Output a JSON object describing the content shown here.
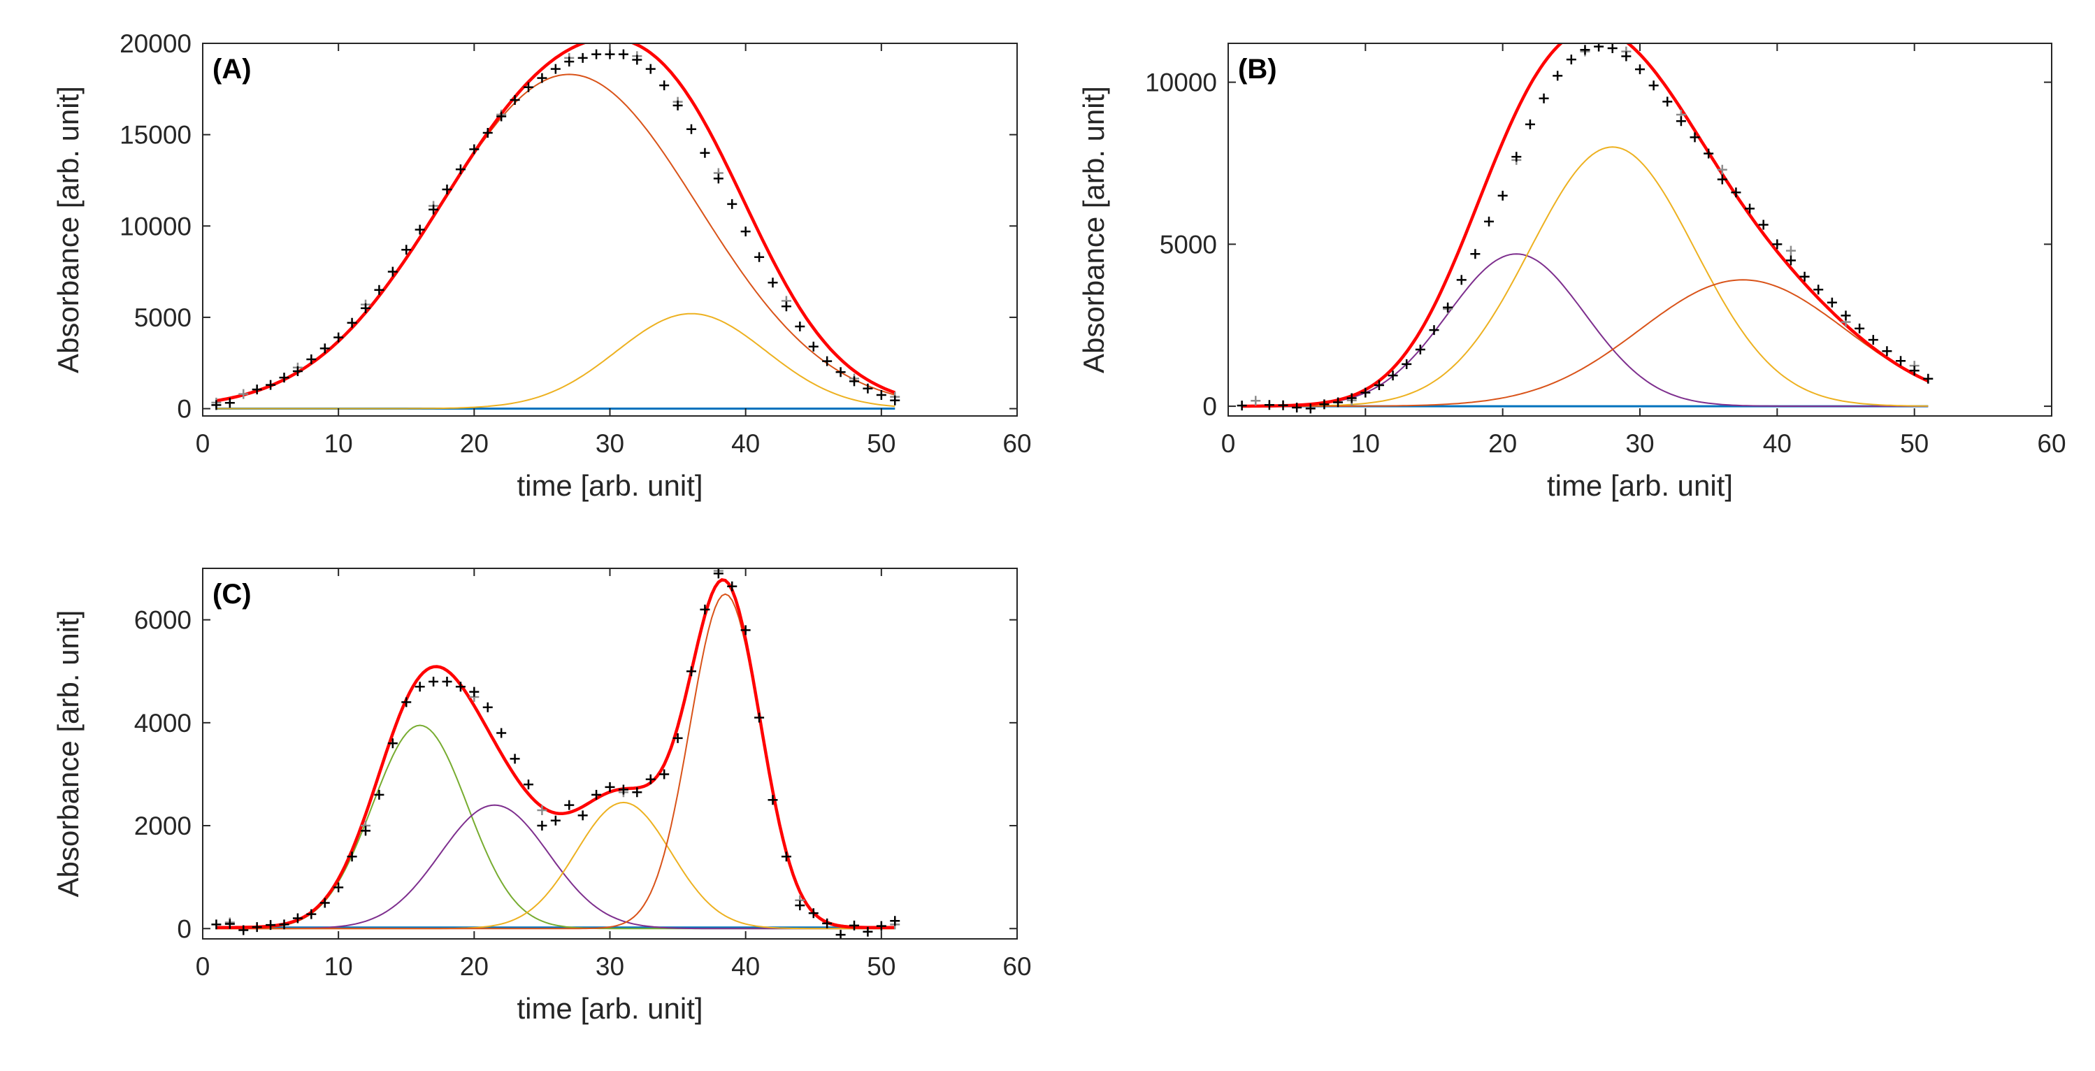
{
  "chart_data": [
    {
      "type": "line",
      "panel_label": "(A)",
      "xlabel": "time [arb. unit]",
      "ylabel": "Absorbance [arb. unit]",
      "xlim": [
        0,
        60
      ],
      "ylim": [
        -400,
        20000
      ],
      "xticks": [
        0,
        10,
        20,
        30,
        40,
        50,
        60
      ],
      "yticks": [
        0,
        5000,
        10000,
        15000,
        20000
      ],
      "grid": false,
      "t_range": [
        1,
        51
      ],
      "components": [
        {
          "name": "baseline",
          "color": "#0072BD",
          "kind": "constant",
          "level": 0
        },
        {
          "name": "component 1",
          "color": "#D95319",
          "kind": "gaussian",
          "amplitude": 18300,
          "center": 27,
          "width": 9.5
        },
        {
          "name": "component 2",
          "color": "#EDB120",
          "kind": "gaussian",
          "amplitude": 5200,
          "center": 36,
          "width": 5.5
        }
      ],
      "fit": {
        "name": "total fit",
        "color": "#FF0000"
      },
      "measured_black": [
        [
          1,
          200
        ],
        [
          2,
          320
        ],
        [
          4,
          1050
        ],
        [
          5,
          1300
        ],
        [
          6,
          1700
        ],
        [
          7,
          2050
        ],
        [
          8,
          2700
        ],
        [
          9,
          3300
        ],
        [
          10,
          3900
        ],
        [
          11,
          4700
        ],
        [
          12,
          5500
        ],
        [
          13,
          6500
        ],
        [
          14,
          7500
        ],
        [
          15,
          8700
        ],
        [
          16,
          9800
        ],
        [
          17,
          10900
        ],
        [
          18,
          12000
        ],
        [
          19,
          13100
        ],
        [
          20,
          14200
        ],
        [
          21,
          15100
        ],
        [
          22,
          16000
        ],
        [
          23,
          16900
        ],
        [
          24,
          17600
        ],
        [
          25,
          18100
        ],
        [
          26,
          18600
        ],
        [
          27,
          19000
        ],
        [
          28,
          19200
        ],
        [
          29,
          19400
        ],
        [
          30,
          19400
        ],
        [
          31,
          19400
        ],
        [
          32,
          19100
        ],
        [
          33,
          18600
        ],
        [
          34,
          17700
        ],
        [
          35,
          16600
        ],
        [
          36,
          15300
        ],
        [
          37,
          14000
        ],
        [
          38,
          12600
        ],
        [
          39,
          11200
        ],
        [
          40,
          9700
        ],
        [
          41,
          8300
        ],
        [
          42,
          6900
        ],
        [
          43,
          5600
        ],
        [
          44,
          4500
        ],
        [
          45,
          3400
        ],
        [
          46,
          2600
        ],
        [
          47,
          2000
        ],
        [
          48,
          1500
        ],
        [
          49,
          1100
        ],
        [
          50,
          750
        ],
        [
          51,
          450
        ]
      ],
      "measured_gray": [
        [
          1,
          330
        ],
        [
          3,
          800
        ],
        [
          7,
          2250
        ],
        [
          12,
          5700
        ],
        [
          17,
          11100
        ],
        [
          22,
          16100
        ],
        [
          27,
          19200
        ],
        [
          32,
          19300
        ],
        [
          35,
          16800
        ],
        [
          38,
          12900
        ],
        [
          43,
          5900
        ],
        [
          48,
          1650
        ],
        [
          51,
          650
        ]
      ]
    },
    {
      "type": "line",
      "panel_label": "(B)",
      "xlabel": "time [arb. unit]",
      "ylabel": "Absorbance [arb. unit]",
      "xlim": [
        0,
        60
      ],
      "ylim": [
        -300,
        11200
      ],
      "xticks": [
        0,
        10,
        20,
        30,
        40,
        50,
        60
      ],
      "yticks": [
        0,
        5000,
        10000
      ],
      "grid": false,
      "t_range": [
        1,
        51
      ],
      "components": [
        {
          "name": "baseline",
          "color": "#0072BD",
          "kind": "constant",
          "level": 0
        },
        {
          "name": "component 1",
          "color": "#7E2F8E",
          "kind": "gaussian",
          "amplitude": 4700,
          "center": 21,
          "width": 5.0
        },
        {
          "name": "component 2",
          "color": "#EDB120",
          "kind": "gaussian",
          "amplitude": 8000,
          "center": 28,
          "width": 6.0
        },
        {
          "name": "component 3",
          "color": "#D95319",
          "kind": "gaussian",
          "amplitude": 3900,
          "center": 37.5,
          "width": 7.5
        }
      ],
      "fit": {
        "name": "total fit",
        "color": "#FF0000"
      },
      "measured_black": [
        [
          1,
          20
        ],
        [
          3,
          40
        ],
        [
          4,
          30
        ],
        [
          5,
          -40
        ],
        [
          6,
          -70
        ],
        [
          7,
          60
        ],
        [
          8,
          120
        ],
        [
          9,
          250
        ],
        [
          10,
          420
        ],
        [
          11,
          650
        ],
        [
          12,
          950
        ],
        [
          13,
          1300
        ],
        [
          14,
          1750
        ],
        [
          15,
          2350
        ],
        [
          16,
          3050
        ],
        [
          17,
          3900
        ],
        [
          18,
          4700
        ],
        [
          19,
          5700
        ],
        [
          20,
          6500
        ],
        [
          21,
          7700
        ],
        [
          22,
          8700
        ],
        [
          23,
          9500
        ],
        [
          24,
          10200
        ],
        [
          25,
          10700
        ],
        [
          26,
          11000
        ],
        [
          27,
          11100
        ],
        [
          28,
          11050
        ],
        [
          29,
          10800
        ],
        [
          30,
          10400
        ],
        [
          31,
          9900
        ],
        [
          32,
          9400
        ],
        [
          33,
          8800
        ],
        [
          34,
          8300
        ],
        [
          35,
          7800
        ],
        [
          36,
          7000
        ],
        [
          37,
          6600
        ],
        [
          38,
          6100
        ],
        [
          39,
          5600
        ],
        [
          40,
          5000
        ],
        [
          41,
          4500
        ],
        [
          42,
          4000
        ],
        [
          43,
          3600
        ],
        [
          44,
          3200
        ],
        [
          45,
          2800
        ],
        [
          46,
          2400
        ],
        [
          47,
          2050
        ],
        [
          48,
          1700
        ],
        [
          49,
          1400
        ],
        [
          50,
          1100
        ],
        [
          51,
          850
        ]
      ],
      "measured_gray": [
        [
          2,
          170
        ],
        [
          9,
          180
        ],
        [
          16,
          3000
        ],
        [
          21,
          7600
        ],
        [
          26,
          10950
        ],
        [
          29,
          10950
        ],
        [
          33,
          9000
        ],
        [
          36,
          7300
        ],
        [
          41,
          4800
        ],
        [
          45,
          2600
        ],
        [
          50,
          1250
        ]
      ]
    },
    {
      "type": "line",
      "panel_label": "(C)",
      "xlabel": "time [arb. unit]",
      "ylabel": "Absorbance [arb. unit]",
      "xlim": [
        0,
        60
      ],
      "ylim": [
        -200,
        7000
      ],
      "xticks": [
        0,
        10,
        20,
        30,
        40,
        50,
        60
      ],
      "yticks": [
        0,
        2000,
        4000,
        6000
      ],
      "grid": false,
      "t_range": [
        1,
        51
      ],
      "components": [
        {
          "name": "baseline",
          "color": "#0072BD",
          "kind": "constant",
          "level": 20
        },
        {
          "name": "component 1",
          "color": "#77AC30",
          "kind": "gaussian",
          "amplitude": 3950,
          "center": 16,
          "width": 3.5
        },
        {
          "name": "component 2",
          "color": "#7E2F8E",
          "kind": "gaussian",
          "amplitude": 2400,
          "center": 21.5,
          "width": 4.0
        },
        {
          "name": "component 3",
          "color": "#EDB120",
          "kind": "gaussian",
          "amplitude": 2450,
          "center": 31,
          "width": 3.5
        },
        {
          "name": "component 4",
          "color": "#D95319",
          "kind": "gaussian",
          "amplitude": 6500,
          "center": 38.5,
          "width": 2.6
        }
      ],
      "fit": {
        "name": "total fit",
        "color": "#FF0000"
      },
      "measured_black": [
        [
          1,
          80
        ],
        [
          2,
          90
        ],
        [
          3,
          -30
        ],
        [
          4,
          30
        ],
        [
          5,
          70
        ],
        [
          6,
          80
        ],
        [
          7,
          200
        ],
        [
          8,
          280
        ],
        [
          9,
          500
        ],
        [
          10,
          800
        ],
        [
          11,
          1400
        ],
        [
          12,
          1900
        ],
        [
          13,
          2600
        ],
        [
          14,
          3600
        ],
        [
          15,
          4400
        ],
        [
          16,
          4700
        ],
        [
          17,
          4800
        ],
        [
          18,
          4800
        ],
        [
          19,
          4700
        ],
        [
          20,
          4600
        ],
        [
          21,
          4300
        ],
        [
          22,
          3800
        ],
        [
          23,
          3300
        ],
        [
          24,
          2800
        ],
        [
          25,
          2000
        ],
        [
          26,
          2100
        ],
        [
          27,
          2400
        ],
        [
          28,
          2200
        ],
        [
          29,
          2600
        ],
        [
          30,
          2750
        ],
        [
          31,
          2700
        ],
        [
          32,
          2650
        ],
        [
          33,
          2900
        ],
        [
          34,
          3000
        ],
        [
          35,
          3700
        ],
        [
          36,
          5000
        ],
        [
          37,
          6200
        ],
        [
          38,
          6900
        ],
        [
          39,
          6650
        ],
        [
          40,
          5800
        ],
        [
          41,
          4100
        ],
        [
          42,
          2500
        ],
        [
          43,
          1400
        ],
        [
          44,
          450
        ],
        [
          45,
          300
        ],
        [
          46,
          100
        ],
        [
          47,
          -120
        ],
        [
          48,
          60
        ],
        [
          49,
          -60
        ],
        [
          50,
          50
        ],
        [
          51,
          150
        ]
      ],
      "measured_gray": [
        [
          2,
          120
        ],
        [
          12,
          2000
        ],
        [
          20,
          4500
        ],
        [
          25,
          2300
        ],
        [
          31,
          2650
        ],
        [
          38,
          6950
        ],
        [
          44,
          550
        ],
        [
          51,
          80
        ]
      ]
    }
  ]
}
